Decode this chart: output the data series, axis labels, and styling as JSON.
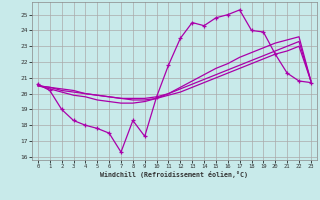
{
  "background_color": "#c8eaea",
  "grid_color": "#aaaaaa",
  "line_color": "#aa00aa",
  "xlabel": "Windchill (Refroidissement éolien,°C)",
  "xlim": [
    -0.5,
    23.5
  ],
  "ylim": [
    15.8,
    25.8
  ],
  "xticks": [
    0,
    1,
    2,
    3,
    4,
    5,
    6,
    7,
    8,
    9,
    10,
    11,
    12,
    13,
    14,
    15,
    16,
    17,
    18,
    19,
    20,
    21,
    22,
    23
  ],
  "yticks": [
    16,
    17,
    18,
    19,
    20,
    21,
    22,
    23,
    24,
    25
  ],
  "s1_x": [
    0,
    1,
    2,
    3,
    4,
    5,
    6,
    7,
    8,
    9,
    10,
    11,
    12,
    13,
    14,
    15,
    16,
    17,
    18,
    19,
    20,
    21,
    22,
    23
  ],
  "s1_y": [
    20.6,
    20.2,
    19.0,
    18.3,
    18.0,
    17.8,
    17.5,
    16.3,
    18.3,
    17.3,
    19.8,
    21.8,
    23.5,
    24.5,
    24.3,
    24.8,
    25.0,
    25.3,
    24.0,
    23.9,
    22.5,
    21.3,
    20.8,
    20.7
  ],
  "s2_x": [
    0,
    1,
    2,
    3,
    4,
    5,
    6,
    7,
    8,
    9,
    10,
    11,
    12,
    13,
    14,
    15,
    16,
    17,
    18,
    19,
    20,
    21,
    22,
    23
  ],
  "s2_y": [
    20.5,
    20.3,
    20.1,
    19.9,
    19.8,
    19.6,
    19.5,
    19.4,
    19.4,
    19.5,
    19.7,
    20.0,
    20.4,
    20.8,
    21.2,
    21.6,
    21.9,
    22.3,
    22.6,
    22.9,
    23.2,
    23.4,
    23.6,
    20.8
  ],
  "s3_x": [
    0,
    1,
    2,
    3,
    4,
    5,
    6,
    7,
    8,
    9,
    10,
    11,
    12,
    13,
    14,
    15,
    16,
    17,
    18,
    19,
    20,
    21,
    22,
    23
  ],
  "s3_y": [
    20.5,
    20.4,
    20.2,
    20.1,
    20.0,
    19.9,
    19.8,
    19.7,
    19.7,
    19.7,
    19.8,
    20.0,
    20.3,
    20.6,
    20.9,
    21.2,
    21.5,
    21.8,
    22.1,
    22.4,
    22.7,
    23.0,
    23.3,
    20.8
  ],
  "s4_x": [
    0,
    1,
    2,
    3,
    4,
    5,
    6,
    7,
    8,
    9,
    10,
    11,
    12,
    13,
    14,
    15,
    16,
    17,
    18,
    19,
    20,
    21,
    22,
    23
  ],
  "s4_y": [
    20.5,
    20.4,
    20.3,
    20.2,
    20.0,
    19.9,
    19.8,
    19.7,
    19.6,
    19.6,
    19.7,
    19.9,
    20.1,
    20.4,
    20.7,
    21.0,
    21.3,
    21.6,
    21.9,
    22.2,
    22.5,
    22.7,
    23.0,
    20.8
  ]
}
